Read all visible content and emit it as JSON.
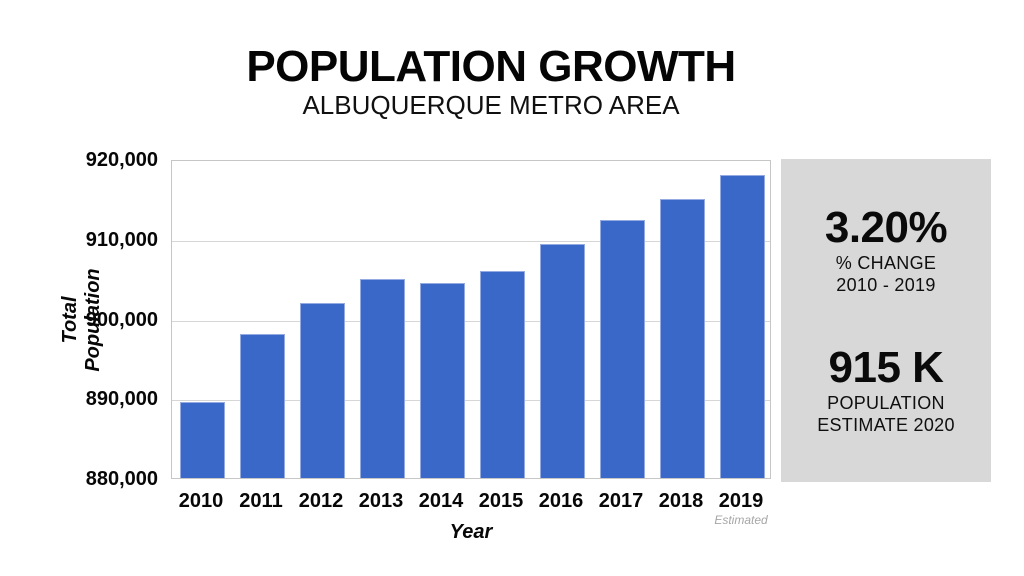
{
  "header": {
    "title": "POPULATION GROWTH",
    "subtitle": "ALBUQUERQUE METRO AREA"
  },
  "chart_data": {
    "type": "bar",
    "title": "POPULATION GROWTH",
    "subtitle": "ALBUQUERQUE METRO AREA",
    "xlabel": "Year",
    "ylabel": "Total Population",
    "categories": [
      "2010",
      "2011",
      "2012",
      "2013",
      "2014",
      "2015",
      "2016",
      "2017",
      "2018",
      "2019"
    ],
    "values": [
      889500,
      898000,
      902000,
      905000,
      904500,
      906000,
      909300,
      912300,
      915000,
      918000
    ],
    "ylim": [
      880000,
      920000
    ],
    "yticks": [
      880000,
      890000,
      900000,
      910000,
      920000
    ],
    "ytick_labels": [
      "880,000",
      "890,000",
      "900,000",
      "910,000",
      "920,000"
    ],
    "grid": true,
    "legend_position": "none",
    "bar_color": "#3a68c9",
    "last_bar_note": "Estimated"
  },
  "stats_panel": {
    "background_color": "#d8d8d8",
    "change": {
      "value": "3.20%",
      "label_line1": "% CHANGE",
      "label_line2": "2010 - 2019"
    },
    "estimate": {
      "value": "915 K",
      "label_line1": "POPULATION",
      "label_line2": "ESTIMATE 2020"
    }
  }
}
